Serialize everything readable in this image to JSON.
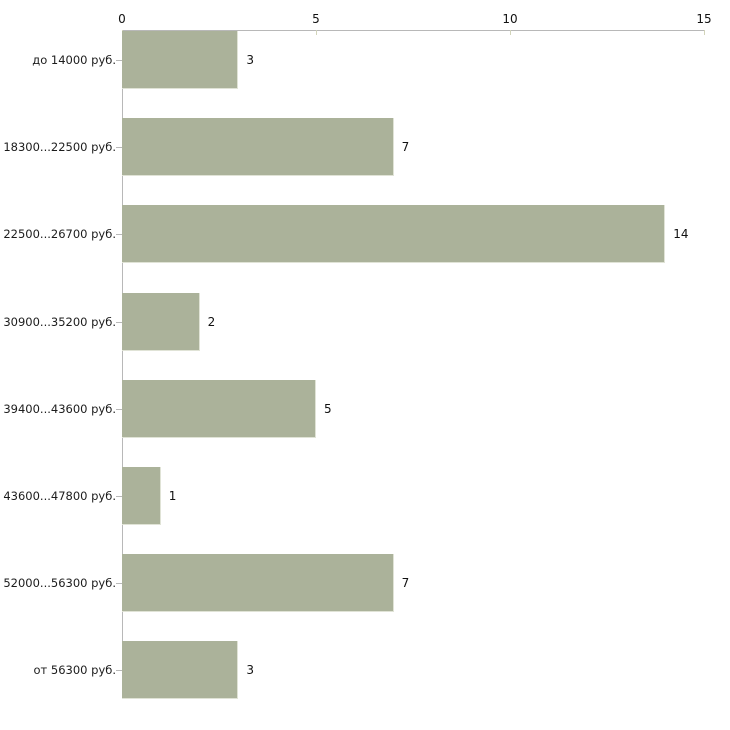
{
  "chart_data": {
    "type": "bar",
    "orientation": "horizontal",
    "title": "",
    "xlabel": "",
    "ylabel": "",
    "categories": [
      "до 14000 руб.",
      "18300...22500 руб.",
      "22500...26700 руб.",
      "30900...35200 руб.",
      "39400...43600 руб.",
      "43600...47800 руб.",
      "52000...56300 руб.",
      "от 56300 руб."
    ],
    "values": [
      3,
      7,
      14,
      2,
      5,
      1,
      7,
      3
    ],
    "xlim": [
      0,
      15
    ],
    "x_ticks": [
      0,
      5,
      10,
      15
    ],
    "axis_position": "top",
    "grid": false,
    "legend": "none",
    "bar_color": "#abb29a",
    "bar_edge_color": "#e0e3d6",
    "axis_color": "#b8b8b8",
    "tick_mark_color": "#d2d4ba",
    "text_color": "#1c1c1c",
    "background_color": "#ffffff"
  }
}
